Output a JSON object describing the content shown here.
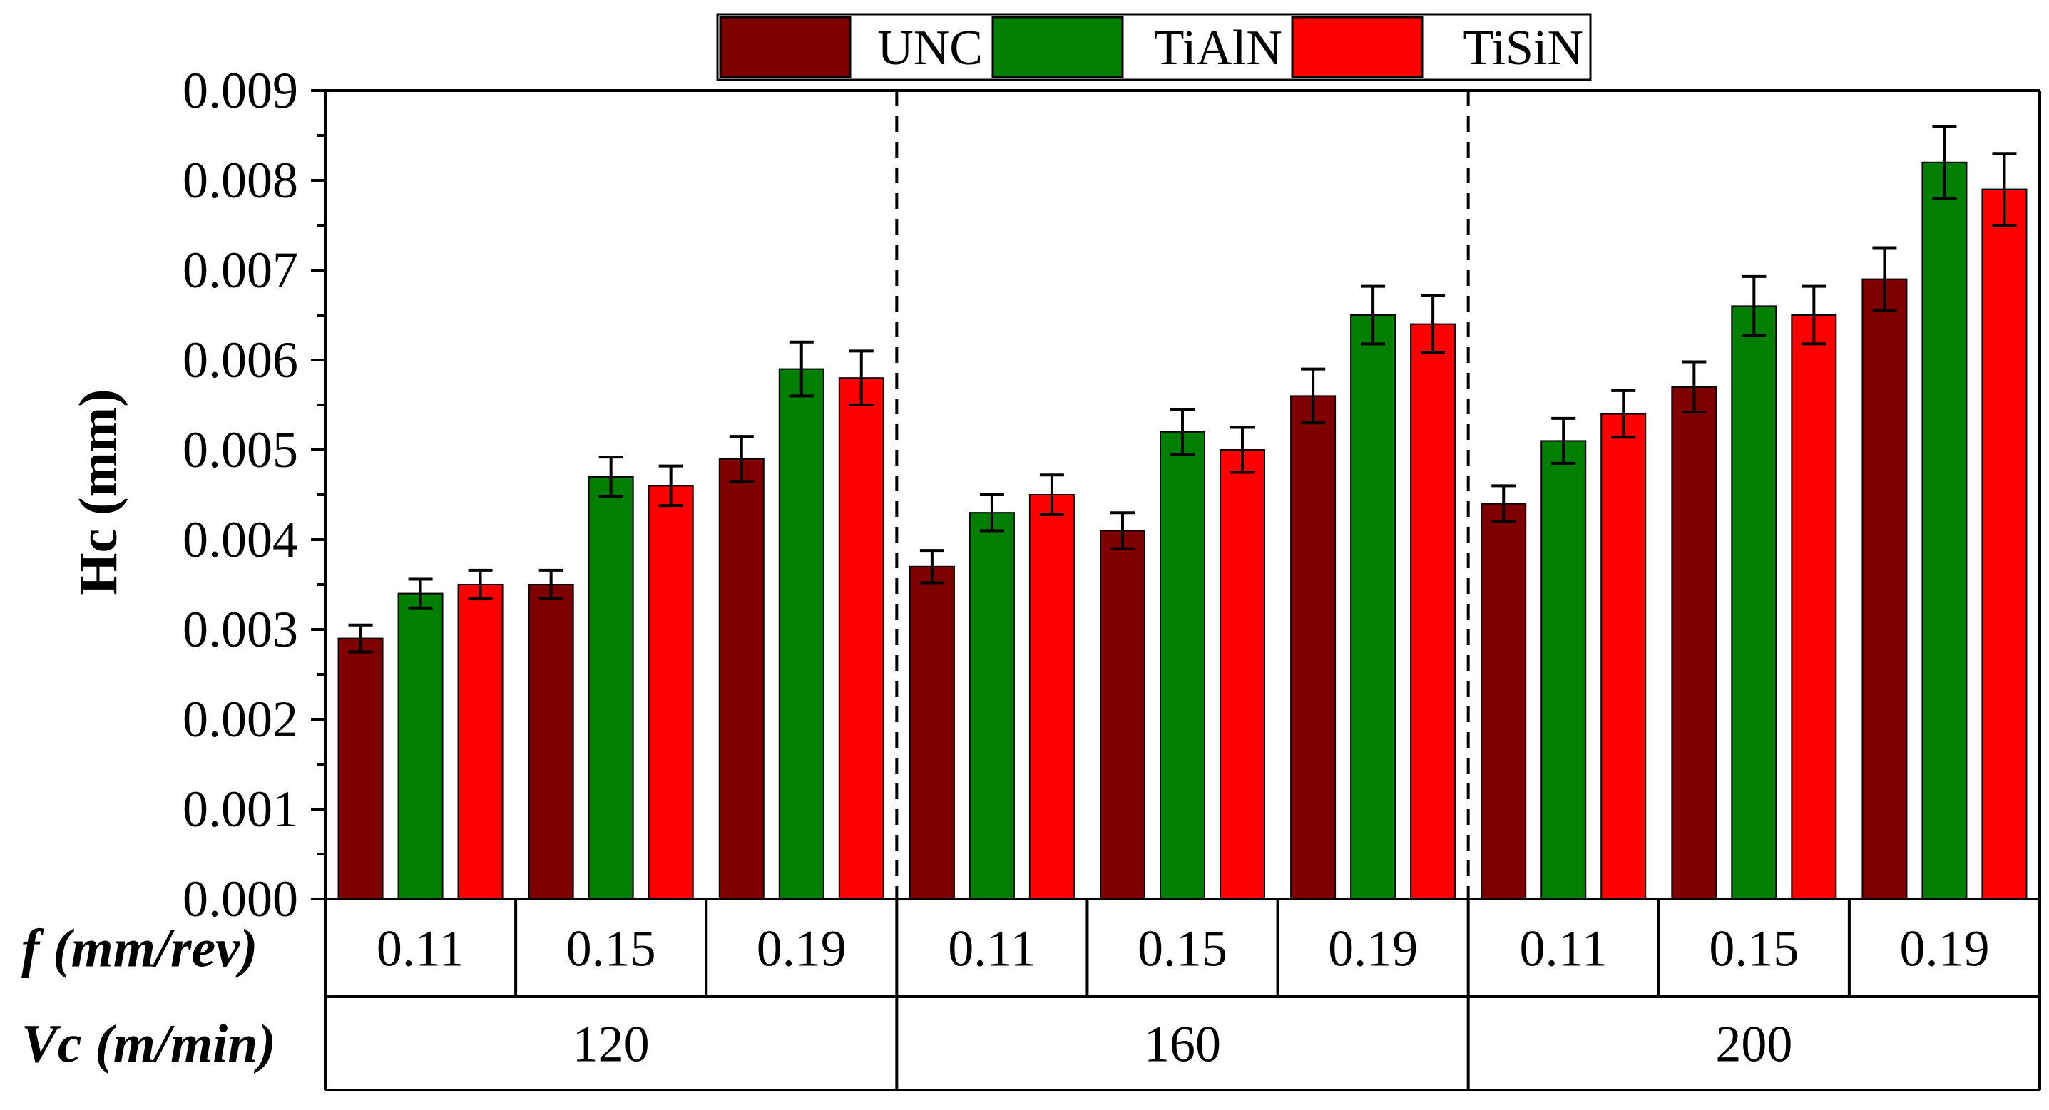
{
  "chart_data": {
    "type": "bar",
    "ylabel": "Hc (mm)",
    "ylim": [
      0,
      0.009
    ],
    "yticks": [
      "0.000",
      "0.001",
      "0.002",
      "0.003",
      "0.004",
      "0.005",
      "0.006",
      "0.007",
      "0.008",
      "0.009"
    ],
    "ytick_values": [
      0,
      0.001,
      0.002,
      0.003,
      0.004,
      0.005,
      0.006,
      0.007,
      0.008,
      0.009
    ],
    "x_row_labels": {
      "feed": "f (mm/rev)",
      "speed": "Vc (m/min)"
    },
    "speed_groups": [
      "120",
      "160",
      "200"
    ],
    "feed_categories": [
      "0.11",
      "0.15",
      "0.19"
    ],
    "legend_position": "top",
    "series": [
      {
        "name": "UNC",
        "color": "#7f0000",
        "values": [
          0.0029,
          0.0035,
          0.0049,
          0.0037,
          0.0041,
          0.0056,
          0.0044,
          0.0057,
          0.0069
        ],
        "errors": [
          0.00015,
          0.00016,
          0.00025,
          0.00018,
          0.0002,
          0.0003,
          0.0002,
          0.00028,
          0.00035
        ]
      },
      {
        "name": "TiAlN",
        "color": "#007f00",
        "values": [
          0.0034,
          0.0047,
          0.0059,
          0.0043,
          0.0052,
          0.0065,
          0.0051,
          0.0066,
          0.0082
        ],
        "errors": [
          0.00016,
          0.00022,
          0.0003,
          0.0002,
          0.00025,
          0.00032,
          0.00025,
          0.00033,
          0.0004
        ]
      },
      {
        "name": "TiSiN",
        "color": "#ff0000",
        "values": [
          0.0035,
          0.0046,
          0.0058,
          0.0045,
          0.005,
          0.0064,
          0.0054,
          0.0065,
          0.0079
        ],
        "errors": [
          0.00016,
          0.00022,
          0.0003,
          0.00022,
          0.00025,
          0.00032,
          0.00026,
          0.00032,
          0.0004
        ]
      }
    ]
  }
}
